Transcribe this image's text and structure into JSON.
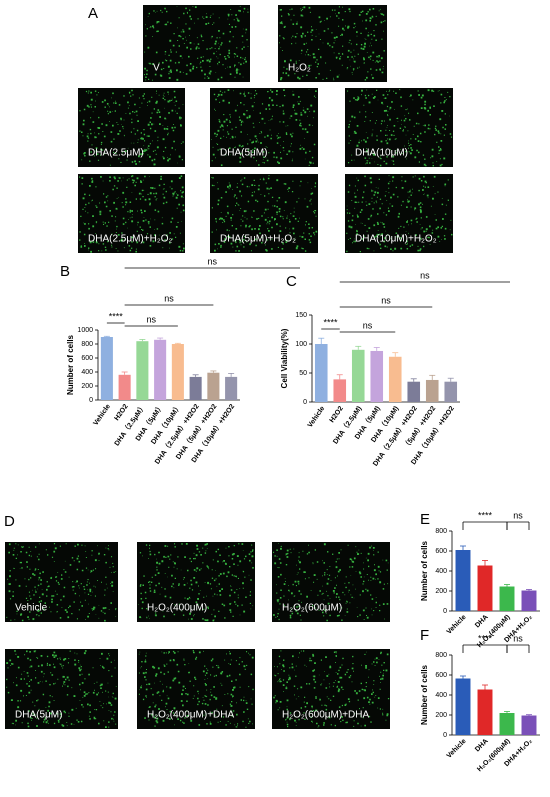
{
  "panel_labels": [
    "A",
    "B",
    "C",
    "D",
    "E",
    "F"
  ],
  "images_A": [
    "V",
    "H₂O₂",
    "DHA(2.5μM)",
    "DHA(5μM)",
    "DHA(10μM)",
    "DHA(2.5μM)+H₂O₂",
    "DHA(5μM)+H₂O₂",
    "DHA(10μM)+H₂O₂"
  ],
  "images_D": [
    "Vehicle",
    "H₂O₂(400μM)",
    "H₂O₂(600μM)",
    "DHA(5μM)",
    "H₂O₂(400μM)+DHA",
    "H₂O₂(600μM)+DHA"
  ],
  "chart_data": [
    {
      "type": "bar",
      "y_label": "Number of cells",
      "categories": [
        "Vehicle",
        "H2O2",
        "DHA（2.5μM）",
        "DHA（5μM）",
        "DHA（10μM）",
        "DHA（2.5μM）+H2O2",
        "DHA（5μM）+H2O2",
        "DHA（10μM）+H2O2"
      ],
      "values": [
        900,
        360,
        840,
        860,
        800,
        330,
        390,
        330
      ],
      "errors": [
        10,
        40,
        25,
        25,
        10,
        30,
        25,
        50
      ],
      "colors": [
        "#8fb0e0",
        "#f28a8a",
        "#96d896",
        "#c4a4dc",
        "#f8bc90",
        "#7c7c98",
        "#baa290",
        "#9494ac"
      ],
      "ylim": [
        0,
        1000
      ],
      "yticks": [
        0,
        200,
        400,
        600,
        800,
        1000
      ],
      "annotations": [
        "****",
        "ns",
        "ns",
        "ns"
      ]
    },
    {
      "type": "bar",
      "y_label": "Cell Viability(%)",
      "categories": [
        "Vehicle",
        "H2O2",
        "DHA（2.5μM)",
        "DHA（5μM)",
        "DHA（10μM)",
        "DHA（2.5μM）+H2O2",
        "（5μM）+H2O2",
        "DHA（10μM）+H2O2"
      ],
      "values": [
        100,
        39,
        90,
        88,
        78,
        35,
        38,
        35
      ],
      "errors": [
        10,
        8,
        6,
        6,
        7,
        5,
        8,
        6
      ],
      "colors": [
        "#8fb0e0",
        "#f28a8a",
        "#96d896",
        "#c4a4dc",
        "#f8bc90",
        "#7c7c98",
        "#baa290",
        "#9494ac"
      ],
      "ylim": [
        0,
        150
      ],
      "yticks": [
        0,
        50,
        100,
        150
      ],
      "annotations": [
        "****",
        "ns",
        "ns",
        "ns"
      ]
    },
    {
      "type": "bar",
      "y_label": "Number of cells",
      "categories": [
        "Vehicle",
        "DHA",
        "H₂O₂(400μM)",
        "DHA+H₂O₂"
      ],
      "values": [
        610,
        455,
        245,
        205
      ],
      "errors": [
        40,
        50,
        20,
        10
      ],
      "colors": [
        "#2a5cb8",
        "#e02828",
        "#3cb84c",
        "#7a50b8"
      ],
      "ylim": [
        0,
        800
      ],
      "yticks": [
        0,
        200,
        400,
        600,
        800
      ],
      "annotations": [
        "****",
        "ns"
      ]
    },
    {
      "type": "bar",
      "y_label": "Number of cells",
      "categories": [
        "Vehicle",
        "DHA",
        "H₂O₂(600μM)",
        "DHA+H₂O₂"
      ],
      "values": [
        565,
        455,
        220,
        195
      ],
      "errors": [
        25,
        45,
        15,
        8
      ],
      "colors": [
        "#2a5cb8",
        "#e02828",
        "#3cb84c",
        "#7a50b8"
      ],
      "ylim": [
        0,
        800
      ],
      "yticks": [
        0,
        200,
        400,
        600,
        800
      ],
      "annotations": [
        "****",
        "ns"
      ]
    }
  ]
}
